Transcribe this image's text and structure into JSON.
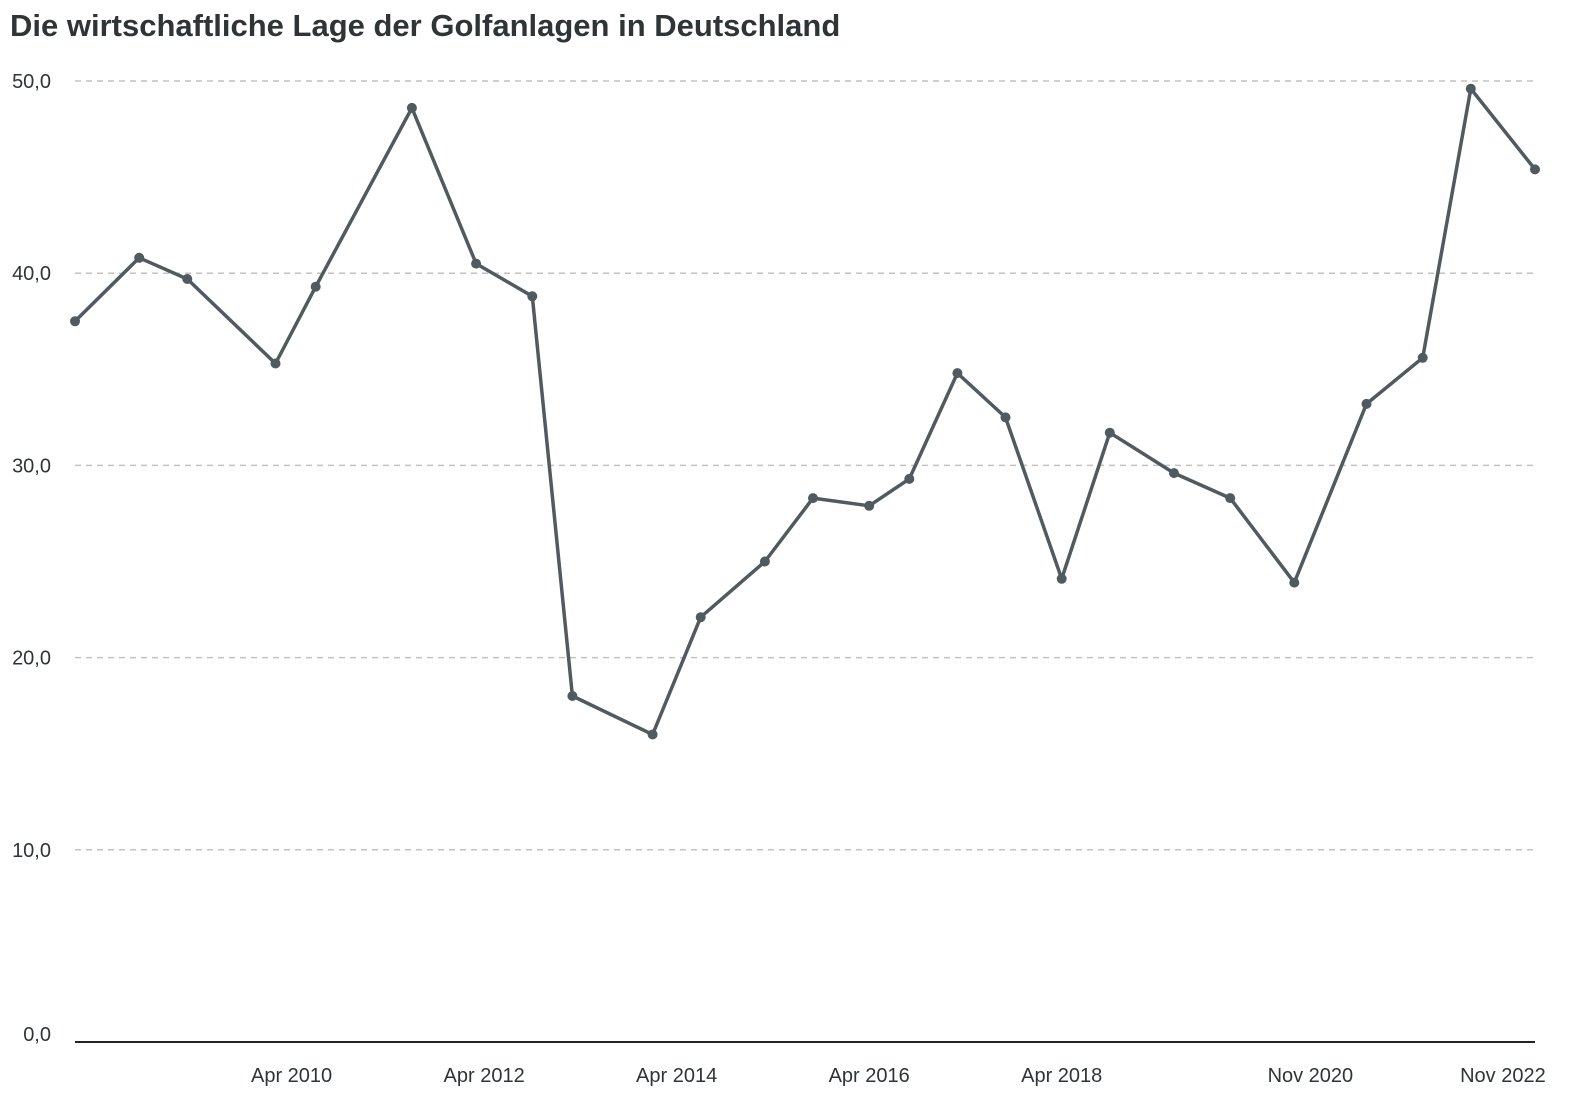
{
  "chart_data": {
    "type": "line",
    "title": "Die wirtschaftliche Lage der Golfanlagen in Deutschland",
    "xlabel": "",
    "ylabel": "",
    "ylim": [
      0,
      50
    ],
    "grid": true,
    "y_ticks": [
      {
        "value": 0,
        "label": "0,0"
      },
      {
        "value": 10,
        "label": "10,0"
      },
      {
        "value": 20,
        "label": "20,0"
      },
      {
        "value": 30,
        "label": "30,0"
      },
      {
        "value": 40,
        "label": "40,0"
      },
      {
        "value": 50,
        "label": "50,0"
      }
    ],
    "x_range": [
      "2008-01",
      "2023-03"
    ],
    "x_ticks": [
      {
        "date": "2010-04",
        "label": "Apr 2010"
      },
      {
        "date": "2012-04",
        "label": "Apr 2012"
      },
      {
        "date": "2014-04",
        "label": "Apr 2014"
      },
      {
        "date": "2016-04",
        "label": "Apr 2016"
      },
      {
        "date": "2018-04",
        "label": "Apr 2018"
      },
      {
        "date": "2020-11",
        "label": "Nov 2020"
      },
      {
        "date": "2022-11",
        "label": "Nov 2022"
      }
    ],
    "series": [
      {
        "color": "#4f5b5e",
        "x": [
          "2008-01",
          "2008-09",
          "2009-03",
          "2010-02",
          "2010-07",
          "2011-07",
          "2012-03",
          "2012-10",
          "2013-03",
          "2014-01",
          "2014-07",
          "2015-03",
          "2015-09",
          "2016-04",
          "2016-09",
          "2017-03",
          "2017-09",
          "2018-04",
          "2018-10",
          "2019-06",
          "2020-01",
          "2020-09",
          "2021-06",
          "2022-01",
          "2022-07",
          "2023-03"
        ],
        "values": [
          37.5,
          40.8,
          39.7,
          35.3,
          39.3,
          48.6,
          40.5,
          38.8,
          18.0,
          16.0,
          22.1,
          25.0,
          28.3,
          27.9,
          29.3,
          34.8,
          32.5,
          24.1,
          31.7,
          29.6,
          28.3,
          23.9,
          33.2,
          35.6,
          49.6,
          45.4
        ]
      }
    ]
  }
}
